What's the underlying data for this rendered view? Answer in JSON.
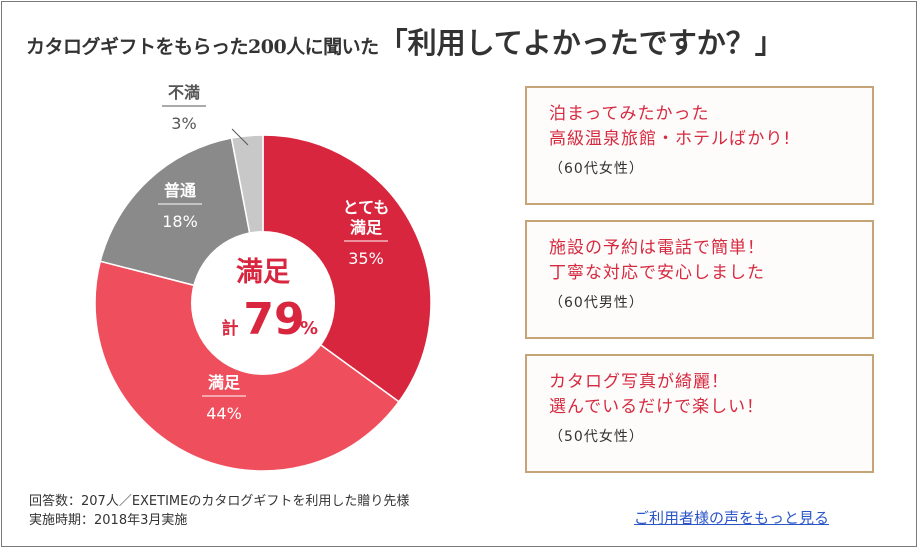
{
  "headline": {
    "lead": "カタログギフトをもらった200人に聞いた",
    "emphasis": "「利用してよかったですか？」"
  },
  "chart_data": {
    "type": "pie",
    "title": "",
    "slices": [
      {
        "label": "とても満足",
        "value": 35,
        "display": "35%",
        "color": "#d9263f"
      },
      {
        "label": "満足",
        "value": 44,
        "display": "44%",
        "color": "#ef4f5d"
      },
      {
        "label": "普通",
        "value": 18,
        "display": "18%",
        "color": "#8a8a8a"
      },
      {
        "label": "不満",
        "value": 3,
        "display": "3%",
        "color": "#c8c8c8"
      }
    ],
    "center": {
      "line1": "満足",
      "prefix": "計",
      "value": "79",
      "unit": "%"
    }
  },
  "testimonials": [
    {
      "lines": [
        "泊まってみたかった",
        "高級温泉旅館・ホテルばかり!"
      ],
      "who": "（60代女性）"
    },
    {
      "lines": [
        "施設の予約は電話で簡単！",
        "丁寧な対応で安心しました"
      ],
      "who": "（60代男性）"
    },
    {
      "lines": [
        "カタログ写真が綺麗！",
        "選んでいるだけで楽しい！"
      ],
      "who": "（50代女性）"
    }
  ],
  "notes": {
    "respondents": "回答数：207人／EXETIMEのカタログギフトを利用した贈り先様",
    "period": "実施時期：2018年3月実施"
  },
  "more_link": "ご利用者様の声をもっと見る",
  "colors": {
    "accent": "#d62a41",
    "card_border": "#c5a478",
    "link": "#2b56c8"
  }
}
